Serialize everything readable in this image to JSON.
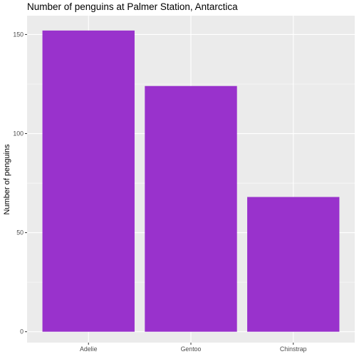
{
  "chart_data": {
    "type": "bar",
    "title": "Number of penguins at Palmer Station, Antarctica",
    "xlabel": "",
    "ylabel": "Number of penguins",
    "categories": [
      "Adelie",
      "Gentoo",
      "Chinstrap"
    ],
    "values": [
      152,
      124,
      68
    ],
    "ylim": [
      -5.5,
      159.5
    ],
    "yticks": [
      0,
      50,
      100,
      150
    ],
    "grid": true,
    "legend": "none",
    "bar_color": "#9932CC",
    "panel_background": "#EBEBEB",
    "gridline_color": "#FFFFFF"
  }
}
